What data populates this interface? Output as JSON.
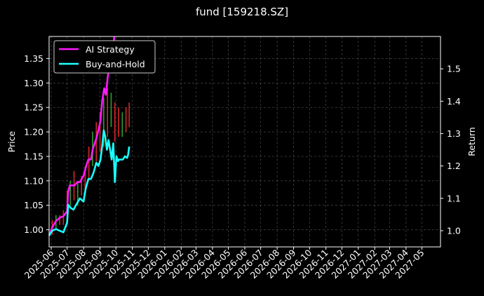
{
  "chart_data": {
    "type": "line",
    "title": "fund [159218.SZ]",
    "ylabel_left": "Price",
    "ylabel_right": "Return",
    "grid": true,
    "legend_position": "top-left",
    "x_ticks": [
      "2025-06",
      "2025-07",
      "2025-08",
      "2025-09",
      "2025-10",
      "2025-11",
      "2025-12",
      "2026-01",
      "2026-02",
      "2026-03",
      "2026-04",
      "2026-05",
      "2026-06",
      "2026-07",
      "2026-08",
      "2026-09",
      "2026-10",
      "2026-11",
      "2026-12",
      "2027-01",
      "2027-02",
      "2027-03",
      "2027-04",
      "2027-05"
    ],
    "x_range": [
      "2025-05-28",
      "2027-06-05"
    ],
    "ylim_left": [
      0.965,
      1.395
    ],
    "ylim_right": [
      0.95,
      1.6
    ],
    "yticks_left": [
      1.0,
      1.05,
      1.1,
      1.15,
      1.2,
      1.25,
      1.3,
      1.35
    ],
    "yticks_right": [
      1.0,
      1.1,
      1.2,
      1.3,
      1.4,
      1.5
    ],
    "colors": {
      "ai": "#ff1aff",
      "bh": "#1affff",
      "up": "#d62728",
      "down": "#2ca02c",
      "background": "#000000"
    },
    "series": [
      {
        "name": "AI Strategy",
        "axis": "right",
        "x": [
          "2025-05-28",
          "2025-06-03",
          "2025-06-10",
          "2025-06-17",
          "2025-06-24",
          "2025-07-01",
          "2025-07-03",
          "2025-07-06",
          "2025-07-10",
          "2025-07-15",
          "2025-07-20",
          "2025-07-25",
          "2025-08-01",
          "2025-08-06",
          "2025-08-10",
          "2025-08-15",
          "2025-08-18",
          "2025-08-22",
          "2025-08-26",
          "2025-08-29",
          "2025-09-02",
          "2025-09-05",
          "2025-09-09",
          "2025-09-12",
          "2025-09-16",
          "2025-09-20",
          "2025-09-24",
          "2025-09-28"
        ],
        "values": [
          0.985,
          1.01,
          1.03,
          1.04,
          1.045,
          1.06,
          1.12,
          1.14,
          1.14,
          1.14,
          1.15,
          1.15,
          1.17,
          1.2,
          1.22,
          1.22,
          1.25,
          1.27,
          1.29,
          1.31,
          1.34,
          1.4,
          1.44,
          1.42,
          1.48,
          1.52,
          1.55,
          1.6
        ]
      },
      {
        "name": "Buy-and-Hold",
        "axis": "right",
        "x": [
          "2025-05-28",
          "2025-06-03",
          "2025-06-10",
          "2025-06-17",
          "2025-06-24",
          "2025-07-01",
          "2025-07-03",
          "2025-07-08",
          "2025-07-13",
          "2025-07-18",
          "2025-07-25",
          "2025-08-01",
          "2025-08-05",
          "2025-08-10",
          "2025-08-15",
          "2025-08-20",
          "2025-08-25",
          "2025-08-29",
          "2025-09-02",
          "2025-09-05",
          "2025-09-08",
          "2025-09-11",
          "2025-09-14",
          "2025-09-17",
          "2025-09-20",
          "2025-09-23",
          "2025-09-26",
          "2025-09-29",
          "2025-10-02",
          "2025-10-05",
          "2025-10-07",
          "2025-10-10",
          "2025-10-14",
          "2025-10-18",
          "2025-10-22",
          "2025-10-24",
          "2025-10-26"
        ],
        "values": [
          0.985,
          1.0,
          1.005,
          1.0,
          0.995,
          1.025,
          1.08,
          1.07,
          1.065,
          1.08,
          1.1,
          1.09,
          1.13,
          1.16,
          1.16,
          1.18,
          1.21,
          1.2,
          1.22,
          1.26,
          1.31,
          1.29,
          1.25,
          1.28,
          1.25,
          1.22,
          1.27,
          1.15,
          1.23,
          1.215,
          1.22,
          1.22,
          1.22,
          1.23,
          1.225,
          1.235,
          1.26
        ]
      }
    ],
    "price_candles": {
      "axis": "left",
      "x": [
        "2025-06-03",
        "2025-06-10",
        "2025-06-17",
        "2025-06-24",
        "2025-07-01",
        "2025-07-07",
        "2025-07-14",
        "2025-07-21",
        "2025-07-28",
        "2025-08-04",
        "2025-08-11",
        "2025-08-18",
        "2025-08-25",
        "2025-09-01",
        "2025-09-08",
        "2025-09-15",
        "2025-09-22",
        "2025-09-29",
        "2025-10-06",
        "2025-10-13",
        "2025-10-20",
        "2025-10-26"
      ],
      "low": [
        0.99,
        1.0,
        1.01,
        1.01,
        1.02,
        1.05,
        1.06,
        1.05,
        1.07,
        1.08,
        1.1,
        1.13,
        1.14,
        1.16,
        1.17,
        1.19,
        1.21,
        1.18,
        1.19,
        1.19,
        1.2,
        1.21
      ],
      "high": [
        1.02,
        1.03,
        1.03,
        1.04,
        1.08,
        1.1,
        1.12,
        1.1,
        1.11,
        1.13,
        1.17,
        1.2,
        1.22,
        1.24,
        1.27,
        1.29,
        1.28,
        1.26,
        1.25,
        1.24,
        1.25,
        1.26
      ],
      "up": [
        true,
        false,
        true,
        true,
        true,
        false,
        true,
        false,
        true,
        true,
        true,
        false,
        true,
        true,
        false,
        true,
        false,
        true,
        true,
        false,
        true,
        true
      ]
    }
  }
}
